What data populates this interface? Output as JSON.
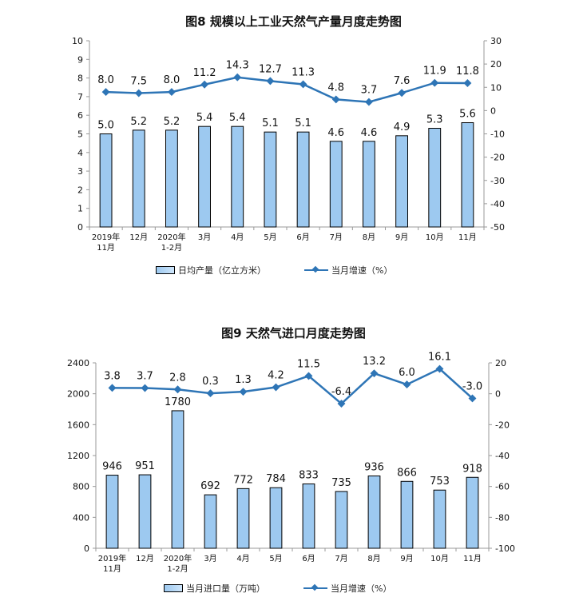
{
  "charts": [
    {
      "title": "图8  规模以上工业天然气产量月度走势图",
      "legend": {
        "bar": "日均产量（亿立方米）",
        "line": "当月增速（%）"
      }
    },
    {
      "title": "图9  天然气进口月度走势图",
      "legend": {
        "bar": "当月进口量（万吨）",
        "line": "当月增速（%）"
      }
    }
  ],
  "colors": {
    "bar_fill": "#9dc9f0",
    "bar_edge": "#000000",
    "line": "#2e75b6",
    "axis": "#999999"
  },
  "chart_data": [
    {
      "type": "bar",
      "title": "图8  规模以上工业天然气产量月度走势图",
      "categories": [
        "2019年\n11月",
        "12月",
        "2020年\n1-2月",
        "3月",
        "4月",
        "5月",
        "6月",
        "7月",
        "8月",
        "9月",
        "10月",
        "11月"
      ],
      "series": [
        {
          "name": "日均产量（亿立方米）",
          "type": "bar",
          "axis": "left",
          "values": [
            5.0,
            5.2,
            5.2,
            5.4,
            5.4,
            5.1,
            5.1,
            4.6,
            4.6,
            4.9,
            5.3,
            5.6
          ]
        },
        {
          "name": "当月增速（%）",
          "type": "line",
          "axis": "right",
          "values": [
            8.0,
            7.5,
            8.0,
            11.2,
            14.3,
            12.7,
            11.3,
            4.8,
            3.7,
            7.6,
            11.9,
            11.8
          ]
        }
      ],
      "ylim_left": [
        0,
        10
      ],
      "yticks_left": [
        0,
        1,
        2,
        3,
        4,
        5,
        6,
        7,
        8,
        9,
        10
      ],
      "ylim_right": [
        -50,
        30
      ],
      "yticks_right": [
        -50,
        -40,
        -30,
        -20,
        -10,
        0,
        10,
        20,
        30
      ],
      "grid": false,
      "legend": "bottom"
    },
    {
      "type": "bar",
      "title": "图9  天然气进口月度走势图",
      "categories": [
        "2019年\n11月",
        "12月",
        "2020年\n1-2月",
        "3月",
        "4月",
        "5月",
        "6月",
        "7月",
        "8月",
        "9月",
        "10月",
        "11月"
      ],
      "series": [
        {
          "name": "当月进口量（万吨）",
          "type": "bar",
          "axis": "left",
          "values": [
            946,
            951,
            1780,
            692,
            772,
            784,
            833,
            735,
            936,
            866,
            753,
            918
          ]
        },
        {
          "name": "当月增速（%）",
          "type": "line",
          "axis": "right",
          "values": [
            3.8,
            3.7,
            2.8,
            0.3,
            1.3,
            4.2,
            11.5,
            -6.4,
            13.2,
            6.0,
            16.1,
            -3.0
          ]
        }
      ],
      "ylim_left": [
        0,
        2400
      ],
      "yticks_left": [
        0,
        400,
        800,
        1200,
        1600,
        2000,
        2400
      ],
      "ylim_right": [
        -100,
        20
      ],
      "yticks_right": [
        -100,
        -80,
        -60,
        -40,
        -20,
        0,
        20
      ],
      "grid": false,
      "legend": "bottom"
    }
  ]
}
